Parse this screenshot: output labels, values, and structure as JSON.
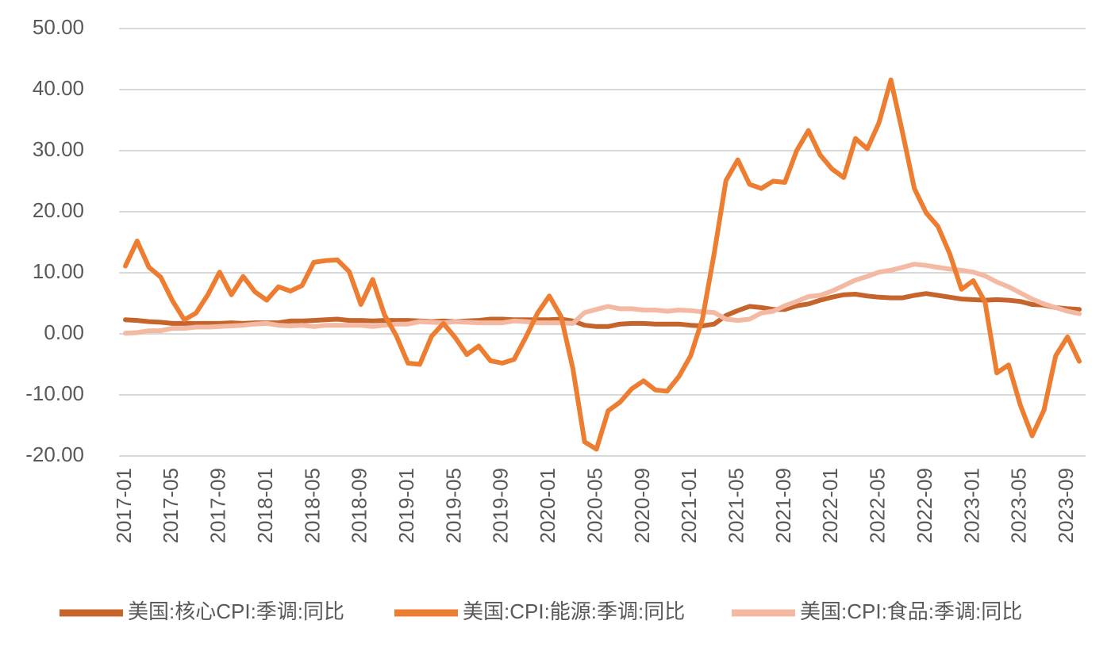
{
  "chart_data": {
    "type": "line",
    "categories": [
      "2017-01",
      null,
      null,
      null,
      "2017-05",
      null,
      null,
      null,
      "2017-09",
      null,
      null,
      null,
      "2018-01",
      null,
      null,
      null,
      "2018-05",
      null,
      null,
      null,
      "2018-09",
      null,
      null,
      null,
      "2019-01",
      null,
      null,
      null,
      "2019-05",
      null,
      null,
      null,
      "2019-09",
      null,
      null,
      null,
      "2020-01",
      null,
      null,
      null,
      "2020-05",
      null,
      null,
      null,
      "2020-09",
      null,
      null,
      null,
      "2021-01",
      null,
      null,
      null,
      "2021-05",
      null,
      null,
      null,
      "2021-09",
      null,
      null,
      null,
      "2022-01",
      null,
      null,
      null,
      "2022-05",
      null,
      null,
      null,
      "2022-09",
      null,
      null,
      null,
      "2023-01",
      null,
      null,
      null,
      "2023-05",
      null,
      null,
      null,
      "2023-09",
      null
    ],
    "series": [
      {
        "name": "美国:核心CPI:季调:同比",
        "color": "#c5652b",
        "values": [
          2.3,
          2.2,
          2.0,
          1.9,
          1.7,
          1.7,
          1.7,
          1.7,
          1.7,
          1.8,
          1.7,
          1.8,
          1.8,
          1.8,
          2.1,
          2.1,
          2.2,
          2.3,
          2.4,
          2.2,
          2.2,
          2.1,
          2.2,
          2.2,
          2.2,
          2.1,
          2.0,
          2.1,
          2.0,
          2.1,
          2.2,
          2.4,
          2.4,
          2.3,
          2.3,
          2.3,
          2.3,
          2.4,
          2.1,
          1.4,
          1.2,
          1.2,
          1.6,
          1.7,
          1.7,
          1.6,
          1.6,
          1.6,
          1.4,
          1.3,
          1.6,
          3.0,
          3.8,
          4.5,
          4.3,
          4.0,
          4.0,
          4.6,
          4.9,
          5.5,
          6.0,
          6.4,
          6.5,
          6.2,
          6.0,
          5.9,
          5.9,
          6.3,
          6.6,
          6.3,
          6.0,
          5.7,
          5.6,
          5.5,
          5.6,
          5.5,
          5.3,
          4.8,
          4.7,
          4.3,
          4.1,
          4.0
        ]
      },
      {
        "name": "美国:CPI:能源:季调:同比",
        "color": "#ed7d31",
        "values": [
          11.1,
          15.2,
          10.9,
          9.3,
          5.4,
          2.3,
          3.4,
          6.4,
          10.1,
          6.4,
          9.4,
          6.9,
          5.5,
          7.7,
          7.0,
          7.9,
          11.7,
          12.0,
          12.1,
          10.2,
          4.8,
          8.9,
          3.1,
          -0.3,
          -4.8,
          -5.0,
          -0.4,
          1.7,
          -0.6,
          -3.4,
          -2.0,
          -4.4,
          -4.8,
          -4.2,
          -0.6,
          3.4,
          6.2,
          2.8,
          -5.7,
          -17.7,
          -18.9,
          -12.6,
          -11.2,
          -9.0,
          -7.7,
          -9.2,
          -9.4,
          -7.0,
          -3.6,
          2.4,
          13.2,
          25.1,
          28.5,
          24.5,
          23.8,
          25.0,
          24.8,
          30.0,
          33.3,
          29.3,
          27.0,
          25.6,
          32.0,
          30.3,
          34.6,
          41.6,
          32.9,
          23.8,
          19.8,
          17.6,
          13.1,
          7.3,
          8.7,
          5.2,
          -6.4,
          -5.1,
          -11.7,
          -16.7,
          -12.5,
          -3.6,
          -0.5,
          -4.5
        ]
      },
      {
        "name": "美国:CPI:食品:季调:同比",
        "color": "#f4b9a2",
        "values": [
          0.1,
          0.2,
          0.5,
          0.5,
          0.9,
          0.9,
          1.1,
          1.1,
          1.2,
          1.3,
          1.4,
          1.6,
          1.7,
          1.4,
          1.3,
          1.4,
          1.2,
          1.4,
          1.4,
          1.4,
          1.4,
          1.2,
          1.4,
          1.6,
          1.6,
          2.0,
          1.9,
          1.8,
          2.0,
          1.9,
          1.8,
          1.8,
          1.8,
          2.1,
          2.0,
          1.8,
          1.8,
          1.8,
          1.7,
          3.5,
          4.0,
          4.5,
          4.1,
          4.1,
          3.9,
          3.9,
          3.7,
          3.9,
          3.8,
          3.6,
          3.5,
          2.4,
          2.2,
          2.4,
          3.4,
          3.7,
          4.6,
          5.3,
          6.1,
          6.3,
          7.0,
          7.9,
          8.8,
          9.4,
          10.1,
          10.4,
          10.9,
          11.4,
          11.2,
          10.9,
          10.6,
          10.4,
          10.1,
          9.5,
          8.5,
          7.7,
          6.7,
          5.7,
          4.9,
          4.3,
          3.7,
          3.3
        ]
      }
    ],
    "ylim": [
      -20,
      50
    ],
    "yticks": [
      {
        "value": -20,
        "label": "-20.00"
      },
      {
        "value": -10,
        "label": "-10.00"
      },
      {
        "value": 0,
        "label": "0.00"
      },
      {
        "value": 10,
        "label": "10.00"
      },
      {
        "value": 20,
        "label": "20.00"
      },
      {
        "value": 30,
        "label": "30.00"
      },
      {
        "value": 40,
        "label": "40.00"
      },
      {
        "value": 50,
        "label": "50.00"
      }
    ],
    "grid": true
  }
}
